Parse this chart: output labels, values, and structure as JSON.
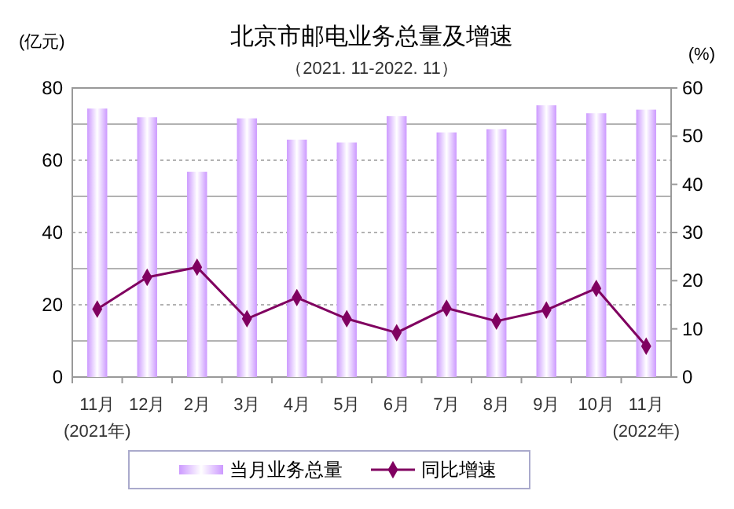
{
  "chart_data": {
    "type": "bar",
    "title": "北京市邮电业务总量及增速",
    "subtitle": "（2021. 11-2022. 11）",
    "ylabel": "(亿元)",
    "y2label": "(%)",
    "categories": [
      "11月",
      "12月",
      "2月",
      "3月",
      "4月",
      "5月",
      "6月",
      "7月",
      "8月",
      "9月",
      "10月",
      "11月"
    ],
    "series": [
      {
        "name": "当月业务总量",
        "color": "#cc99ff",
        "values": [
          74.3,
          71.9,
          56.8,
          71.6,
          65.7,
          64.9,
          72.2,
          67.7,
          68.6,
          75.2,
          73.0,
          74.0
        ]
      },
      {
        "name": "同比增速",
        "type": "line",
        "axis": "y2",
        "color": "#800060",
        "marker": "diamond",
        "values": [
          14.1,
          20.7,
          22.8,
          12.1,
          16.5,
          12.1,
          9.2,
          14.3,
          11.6,
          13.9,
          18.4,
          6.4
        ]
      }
    ],
    "ylim": [
      0,
      80
    ],
    "yticks": [
      0,
      {
        "value": 10,
        "label": null
      },
      20,
      {
        "value": 30,
        "label": null
      },
      40,
      {
        "value": 50,
        "label": null
      },
      60,
      {
        "value": 70,
        "label": null
      },
      80
    ],
    "y2lim": [
      0,
      60
    ],
    "y2ticks": [
      0,
      10,
      20,
      30,
      40,
      50,
      60
    ],
    "grid": "y",
    "legend": "bottom",
    "annotations": [
      "(2021年)",
      "(2022年)"
    ]
  }
}
